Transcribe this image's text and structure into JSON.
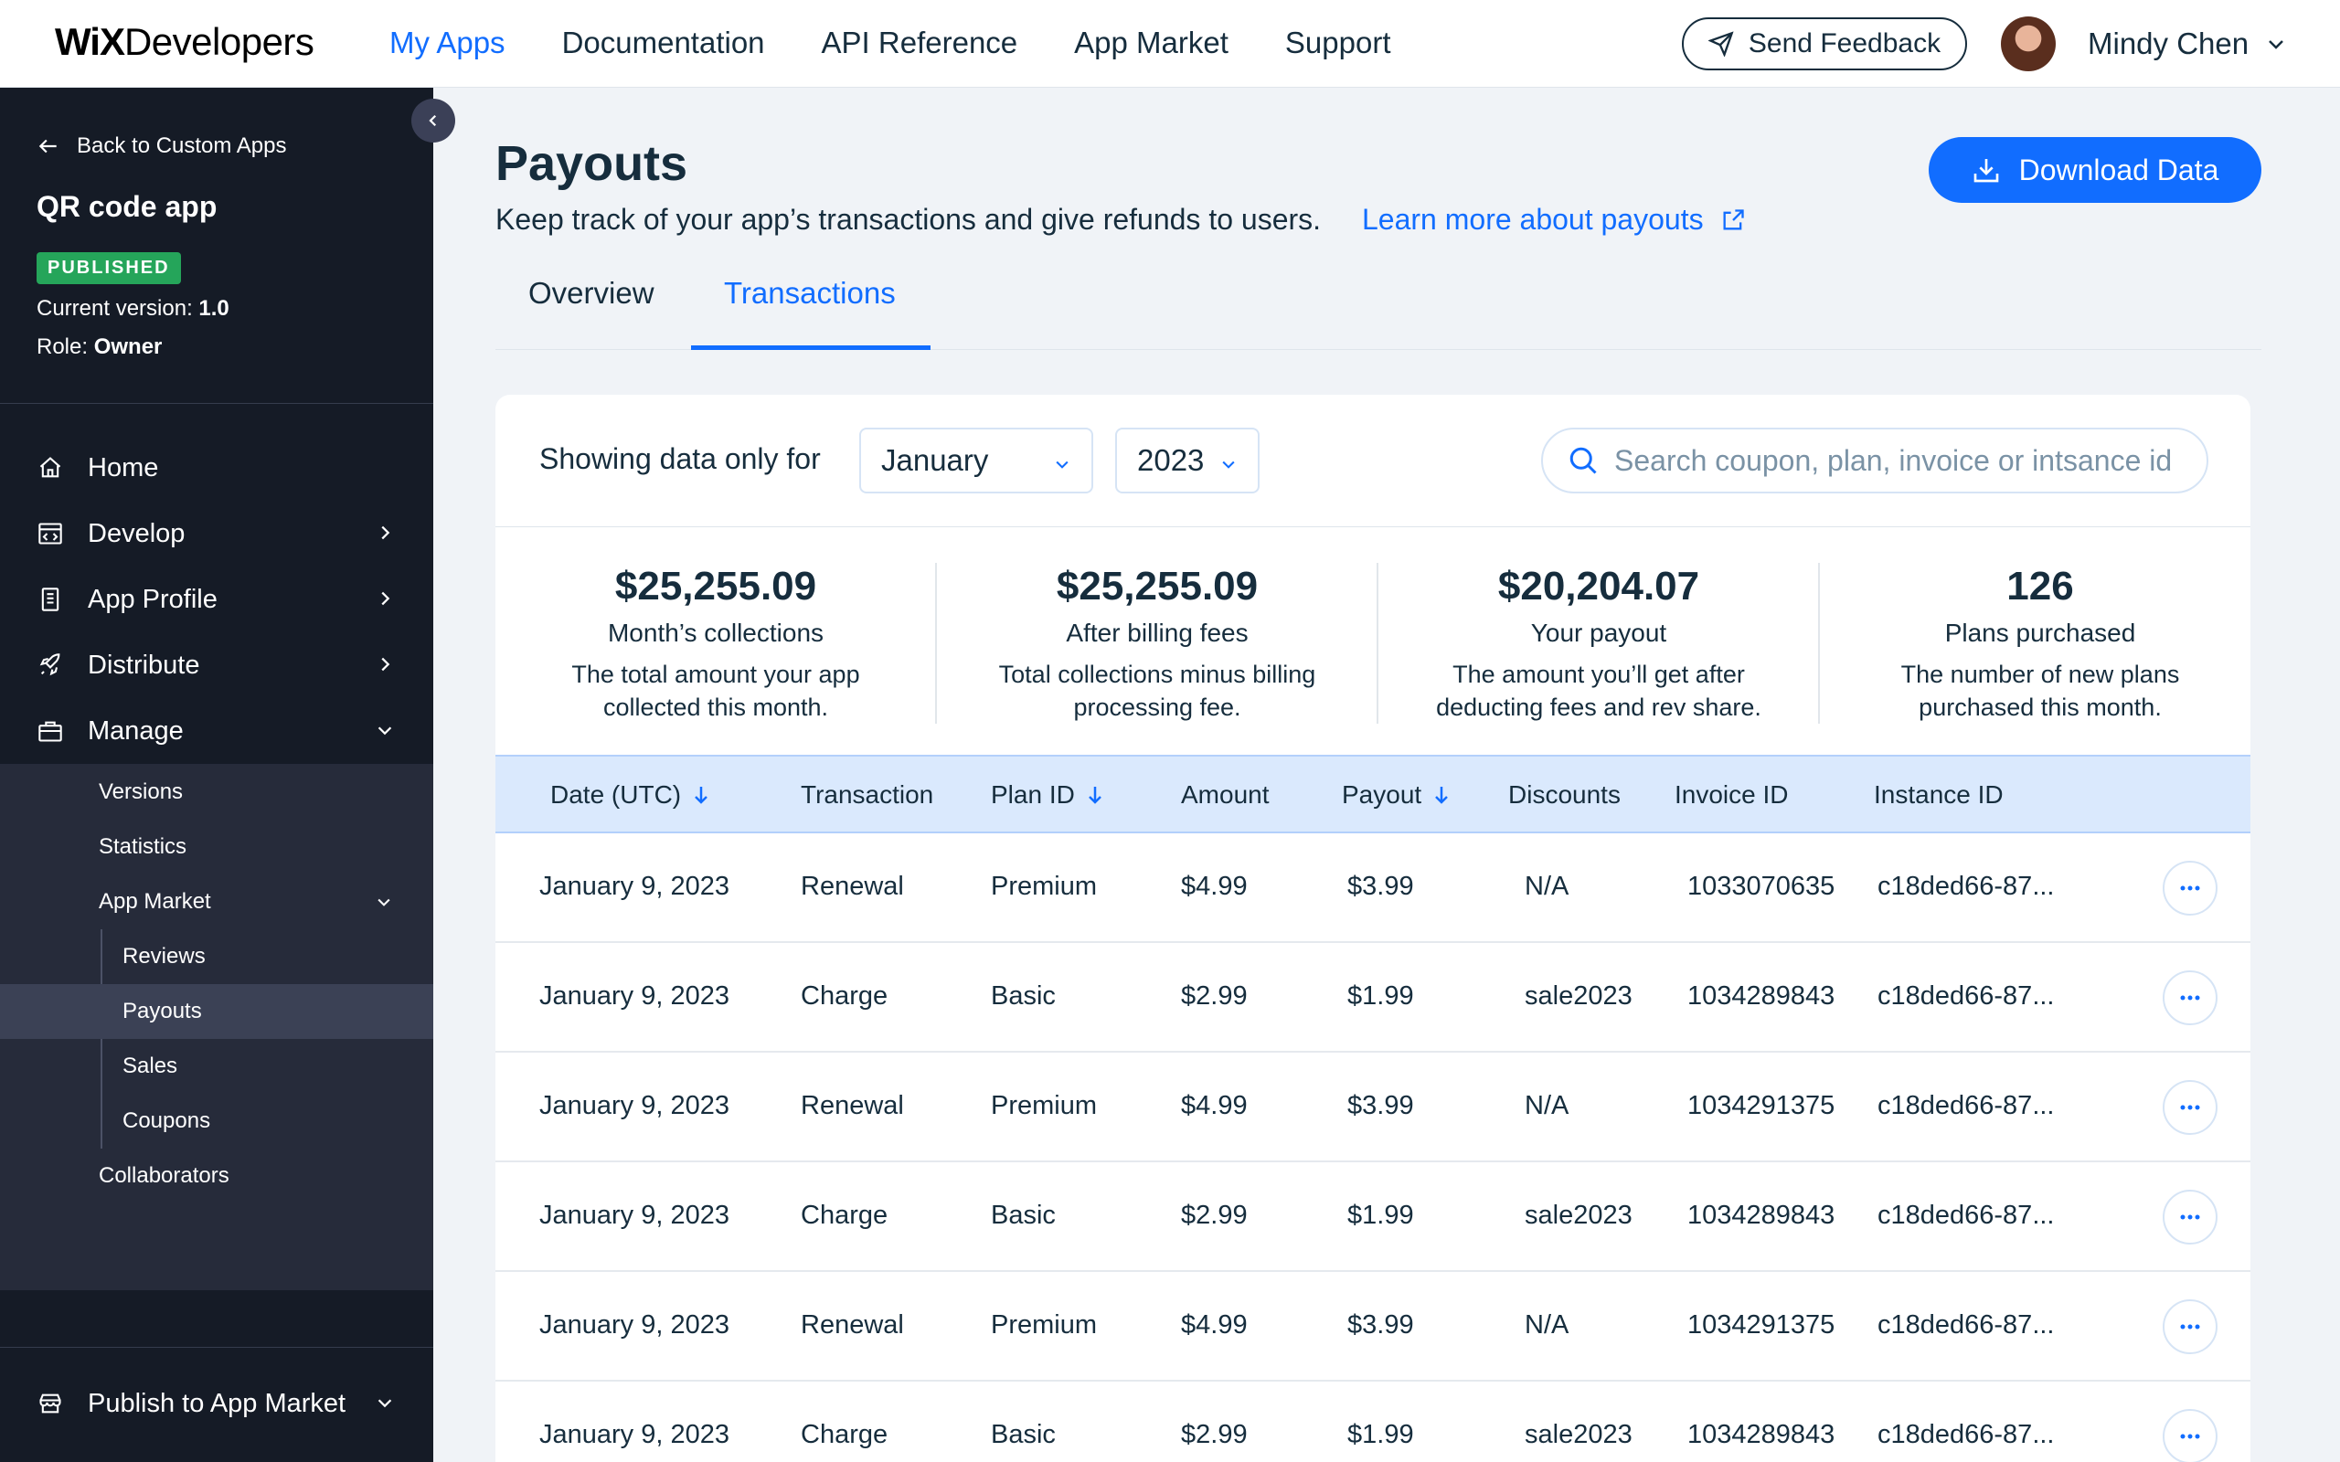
{
  "brand": {
    "logo_bold": "WiX",
    "logo_rest": "Developers"
  },
  "nav": {
    "links": [
      "My Apps",
      "Documentation",
      "API Reference",
      "App Market",
      "Support"
    ]
  },
  "header": {
    "feedback_label": "Send Feedback",
    "user_name": "Mindy Chen"
  },
  "sidebar": {
    "back_label": "Back to Custom Apps",
    "app_name": "QR code app",
    "status": "PUBLISHED",
    "version_label": "Current version: ",
    "version_value": "1.0",
    "role_label": "Role: ",
    "role_value": "Owner",
    "items": [
      "Home",
      "Develop",
      "App Profile",
      "Distribute",
      "Manage"
    ],
    "manage_sub": [
      "Versions",
      "Statistics",
      "App Market"
    ],
    "app_market_sub": [
      "Reviews",
      "Payouts",
      "Sales",
      "Coupons"
    ],
    "collaborators": "Collaborators",
    "publish_label": "Publish to App Market",
    "active_item": "Payouts"
  },
  "page": {
    "title": "Payouts",
    "description": "Keep track of your app’s transactions and give refunds to users.",
    "learn_more": "Learn more about payouts",
    "download_label": "Download Data",
    "tabs": [
      "Overview",
      "Transactions"
    ],
    "active_tab": "Transactions"
  },
  "filters": {
    "label": "Showing data only for",
    "month": "January",
    "year": "2023",
    "search_placeholder": "Search coupon, plan, invoice or intsance id"
  },
  "stats": [
    {
      "value": "$25,255.09",
      "label": "Month’s collections",
      "desc": "The total amount your app collected this month."
    },
    {
      "value": "$25,255.09",
      "label": "After billing fees",
      "desc": "Total collections minus billing processing fee."
    },
    {
      "value": "$20,204.07",
      "label": "Your payout",
      "desc": "The amount you’ll get after deducting fees and rev share."
    },
    {
      "value": "126",
      "label": "Plans purchased",
      "desc": "The number of new plans purchased this month."
    }
  ],
  "table": {
    "columns": [
      "Date (UTC)",
      "Transaction",
      "Plan ID",
      "Amount",
      "Payout",
      "Discounts",
      "Invoice ID",
      "Instance ID"
    ],
    "rows": [
      [
        "January 9, 2023",
        "Renewal",
        "Premium",
        "$4.99",
        "$3.99",
        "N/A",
        "1033070635",
        "c18ded66-87..."
      ],
      [
        "January 9, 2023",
        "Charge",
        "Basic",
        "$2.99",
        "$1.99",
        "sale2023",
        "1034289843",
        "c18ded66-87..."
      ],
      [
        "January 9, 2023",
        "Renewal",
        "Premium",
        "$4.99",
        "$3.99",
        "N/A",
        "1034291375",
        "c18ded66-87..."
      ],
      [
        "January 9, 2023",
        "Charge",
        "Basic",
        "$2.99",
        "$1.99",
        "sale2023",
        "1034289843",
        "c18ded66-87..."
      ],
      [
        "January 9, 2023",
        "Renewal",
        "Premium",
        "$4.99",
        "$3.99",
        "N/A",
        "1034291375",
        "c18ded66-87..."
      ],
      [
        "January 9, 2023",
        "Charge",
        "Basic",
        "$2.99",
        "$1.99",
        "sale2023",
        "1034289843",
        "c18ded66-87..."
      ]
    ]
  },
  "colors": {
    "accent": "#116dff",
    "sidebar_bg": "#151b26",
    "published": "#25a55a"
  }
}
